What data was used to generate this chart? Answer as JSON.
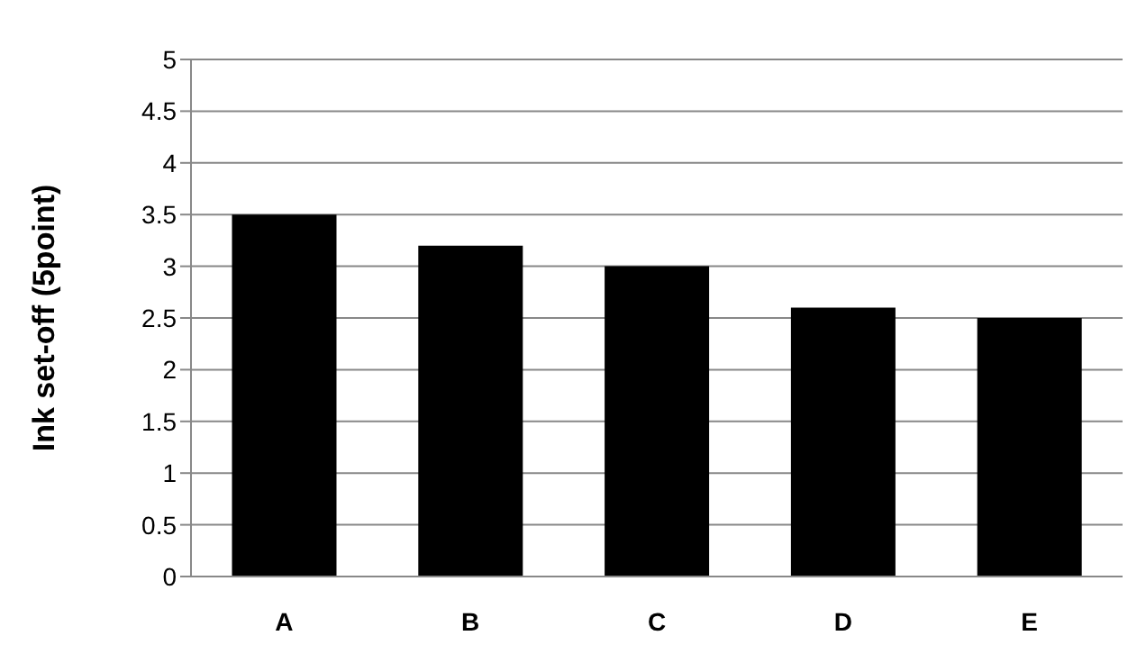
{
  "chart_data": {
    "type": "bar",
    "ylabel": "Ink set-off (5point)",
    "categories": [
      "A",
      "B",
      "C",
      "D",
      "E"
    ],
    "values": [
      3.5,
      3.2,
      3.0,
      2.6,
      2.5
    ],
    "color": "#000000",
    "ylim": [
      0,
      5
    ],
    "yticks": [
      0,
      0.5,
      1,
      1.5,
      2,
      2.5,
      3,
      3.5,
      4,
      4.5,
      5
    ],
    "grid": "y"
  }
}
